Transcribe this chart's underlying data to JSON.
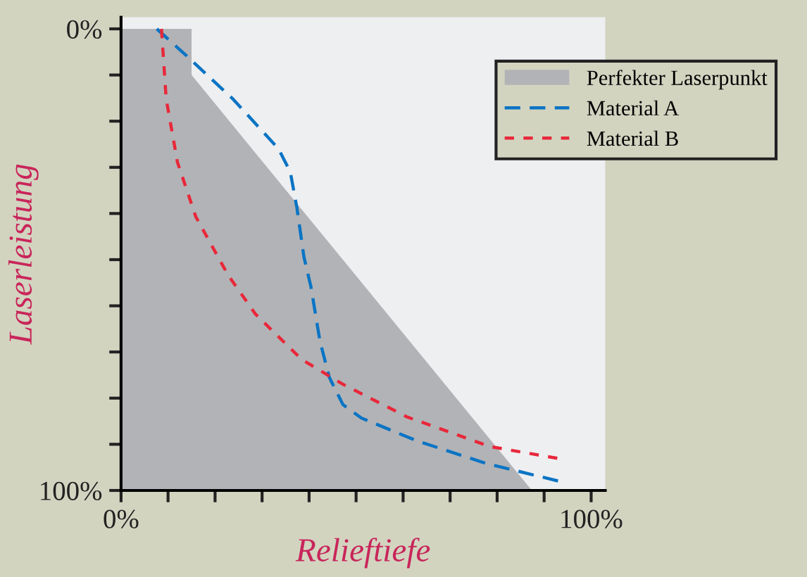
{
  "chart_data": {
    "type": "line",
    "xlabel": "Relieftiefe",
    "ylabel": "Laserleistung",
    "xlim": [
      0,
      103
    ],
    "ylim": [
      100,
      -2.5
    ],
    "xticks": [
      {
        "value": 0,
        "label": "0%"
      },
      {
        "value": 10,
        "label": null
      },
      {
        "value": 20,
        "label": null
      },
      {
        "value": 30,
        "label": null
      },
      {
        "value": 40,
        "label": null
      },
      {
        "value": 50,
        "label": null
      },
      {
        "value": 60,
        "label": null
      },
      {
        "value": 70,
        "label": null
      },
      {
        "value": 80,
        "label": null
      },
      {
        "value": 90,
        "label": null
      },
      {
        "value": 100,
        "label": "100%"
      }
    ],
    "yticks": [
      {
        "value": 0,
        "label": "0%"
      },
      {
        "value": 10,
        "label": null
      },
      {
        "value": 20,
        "label": null
      },
      {
        "value": 30,
        "label": null
      },
      {
        "value": 40,
        "label": null
      },
      {
        "value": 50,
        "label": null
      },
      {
        "value": 60,
        "label": null
      },
      {
        "value": 70,
        "label": null
      },
      {
        "value": 80,
        "label": null
      },
      {
        "value": 90,
        "label": null
      },
      {
        "value": 100,
        "label": "100%"
      }
    ],
    "series": [
      {
        "name": "Perfekter Laserpunkt",
        "type": "area",
        "color": "#b2b3b6",
        "x": [
          0,
          0,
          15,
          15,
          87.4
        ],
        "values": [
          100,
          0,
          0,
          10,
          100
        ]
      },
      {
        "name": "Material A",
        "line_style": "dashed",
        "color": "#0a74c4",
        "x": [
          7.6,
          14,
          23.8,
          33.5,
          36,
          37.4,
          38.9,
          40.4,
          42.3,
          44.3,
          47.2,
          51.1,
          62.8,
          77.5,
          93.2
        ],
        "values": [
          0,
          5.9,
          15.2,
          26,
          31,
          38.7,
          49.4,
          55.9,
          67.6,
          75.5,
          81.4,
          84.3,
          89.2,
          94.1,
          98
        ]
      },
      {
        "name": "Material B",
        "line_style": "dotted",
        "color": "#e8283a",
        "x": [
          8.6,
          9.6,
          12,
          15.9,
          22.8,
          28.6,
          38.4,
          47.2,
          60.9,
          78.5,
          93.2
        ],
        "values": [
          0,
          15.2,
          28.9,
          40.7,
          53.4,
          61.8,
          71.6,
          77,
          84.1,
          90.5,
          93.1
        ]
      }
    ],
    "legend": "top right",
    "grid": false
  }
}
